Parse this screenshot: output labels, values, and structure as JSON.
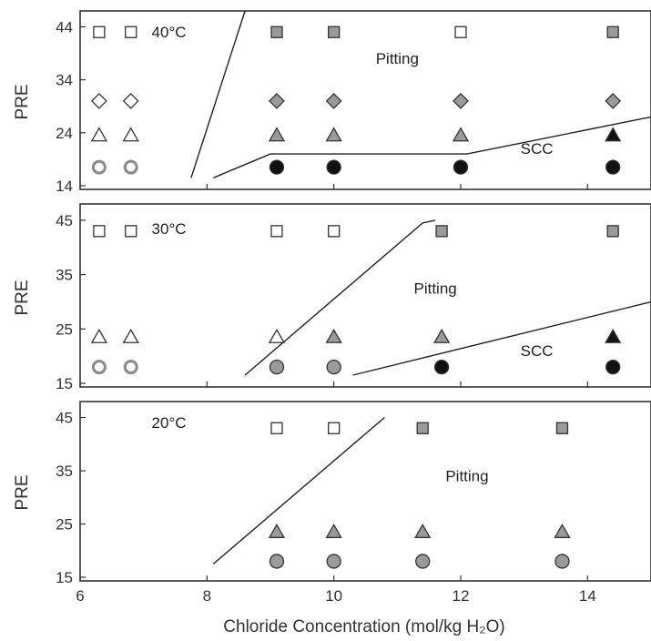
{
  "chart_data": [
    {
      "type": "scatter",
      "panel_label": "40°C",
      "ylabel": "PRE",
      "xlim": [
        6,
        15
      ],
      "ylim": [
        14,
        47
      ],
      "yticks": [
        14,
        24,
        34,
        44
      ],
      "xticks": [],
      "annotations": [
        {
          "text": "40°C",
          "x": 7.4,
          "y": 42
        },
        {
          "text": "Pitting",
          "x": 11.0,
          "y": 37
        },
        {
          "text": "SCC",
          "x": 13.2,
          "y": 20
        }
      ],
      "lines": [
        [
          [
            7.75,
            15.5
          ],
          [
            8.6,
            47
          ]
        ],
        [
          [
            8.1,
            15.5
          ],
          [
            9.0,
            20
          ],
          [
            12.1,
            20
          ],
          [
            15.0,
            27
          ]
        ]
      ],
      "points": [
        {
          "x": 6.3,
          "y": 43,
          "marker": "square",
          "fill": "open"
        },
        {
          "x": 6.8,
          "y": 43,
          "marker": "square",
          "fill": "open"
        },
        {
          "x": 9.1,
          "y": 43,
          "marker": "square",
          "fill": "gray"
        },
        {
          "x": 10.0,
          "y": 43,
          "marker": "square",
          "fill": "gray"
        },
        {
          "x": 12.0,
          "y": 43,
          "marker": "square",
          "fill": "open"
        },
        {
          "x": 14.4,
          "y": 43,
          "marker": "square",
          "fill": "gray"
        },
        {
          "x": 6.3,
          "y": 30,
          "marker": "diamond",
          "fill": "open"
        },
        {
          "x": 6.8,
          "y": 30,
          "marker": "diamond",
          "fill": "open"
        },
        {
          "x": 9.1,
          "y": 30,
          "marker": "diamond",
          "fill": "gray"
        },
        {
          "x": 10.0,
          "y": 30,
          "marker": "diamond",
          "fill": "gray"
        },
        {
          "x": 12.0,
          "y": 30,
          "marker": "diamond",
          "fill": "gray"
        },
        {
          "x": 14.4,
          "y": 30,
          "marker": "diamond",
          "fill": "gray"
        },
        {
          "x": 6.3,
          "y": 23.5,
          "marker": "triangle",
          "fill": "open"
        },
        {
          "x": 6.8,
          "y": 23.5,
          "marker": "triangle",
          "fill": "open"
        },
        {
          "x": 9.1,
          "y": 23.5,
          "marker": "triangle",
          "fill": "gray"
        },
        {
          "x": 10.0,
          "y": 23.5,
          "marker": "triangle",
          "fill": "gray"
        },
        {
          "x": 12.0,
          "y": 23.5,
          "marker": "triangle",
          "fill": "gray"
        },
        {
          "x": 14.4,
          "y": 23.5,
          "marker": "triangle",
          "fill": "black"
        },
        {
          "x": 6.3,
          "y": 17.5,
          "marker": "circle",
          "fill": "open"
        },
        {
          "x": 6.8,
          "y": 17.5,
          "marker": "circle",
          "fill": "open"
        },
        {
          "x": 9.1,
          "y": 17.5,
          "marker": "circle",
          "fill": "black"
        },
        {
          "x": 10.0,
          "y": 17.5,
          "marker": "circle",
          "fill": "black"
        },
        {
          "x": 12.0,
          "y": 17.5,
          "marker": "circle",
          "fill": "black"
        },
        {
          "x": 14.4,
          "y": 17.5,
          "marker": "circle",
          "fill": "black"
        }
      ]
    },
    {
      "type": "scatter",
      "panel_label": "30°C",
      "ylabel": "PRE",
      "xlim": [
        6,
        15
      ],
      "ylim": [
        15,
        48
      ],
      "yticks": [
        15,
        25,
        35,
        45
      ],
      "xticks": [],
      "annotations": [
        {
          "text": "30°C",
          "x": 7.4,
          "y": 42.5
        },
        {
          "text": "Pitting",
          "x": 11.6,
          "y": 31.5
        },
        {
          "text": "SCC",
          "x": 13.2,
          "y": 20
        }
      ],
      "lines": [
        [
          [
            8.6,
            16.5
          ],
          [
            11.4,
            44.5
          ],
          [
            11.6,
            45
          ]
        ],
        [
          [
            10.3,
            16.5
          ],
          [
            15.0,
            30
          ]
        ]
      ],
      "points": [
        {
          "x": 6.3,
          "y": 43,
          "marker": "square",
          "fill": "open"
        },
        {
          "x": 6.8,
          "y": 43,
          "marker": "square",
          "fill": "open"
        },
        {
          "x": 9.1,
          "y": 43,
          "marker": "square",
          "fill": "open"
        },
        {
          "x": 10.0,
          "y": 43,
          "marker": "square",
          "fill": "open"
        },
        {
          "x": 11.7,
          "y": 43,
          "marker": "square",
          "fill": "gray"
        },
        {
          "x": 14.4,
          "y": 43,
          "marker": "square",
          "fill": "gray"
        },
        {
          "x": 6.3,
          "y": 23.5,
          "marker": "triangle",
          "fill": "open"
        },
        {
          "x": 6.8,
          "y": 23.5,
          "marker": "triangle",
          "fill": "open"
        },
        {
          "x": 9.1,
          "y": 23.5,
          "marker": "triangle",
          "fill": "open"
        },
        {
          "x": 10.0,
          "y": 23.5,
          "marker": "triangle",
          "fill": "gray"
        },
        {
          "x": 11.7,
          "y": 23.5,
          "marker": "triangle",
          "fill": "gray"
        },
        {
          "x": 14.4,
          "y": 23.5,
          "marker": "triangle",
          "fill": "black"
        },
        {
          "x": 6.3,
          "y": 18,
          "marker": "circle",
          "fill": "open"
        },
        {
          "x": 6.8,
          "y": 18,
          "marker": "circle",
          "fill": "open"
        },
        {
          "x": 9.1,
          "y": 18,
          "marker": "circle",
          "fill": "gray"
        },
        {
          "x": 10.0,
          "y": 18,
          "marker": "circle",
          "fill": "gray"
        },
        {
          "x": 11.7,
          "y": 18,
          "marker": "circle",
          "fill": "black"
        },
        {
          "x": 14.4,
          "y": 18,
          "marker": "circle",
          "fill": "black"
        }
      ]
    },
    {
      "type": "scatter",
      "panel_label": "20°C",
      "ylabel": "PRE",
      "xlabel": "Chloride Concentration (mol/kg H₂O)",
      "xlim": [
        6,
        15
      ],
      "ylim": [
        15,
        48
      ],
      "yticks": [
        15,
        25,
        35,
        45
      ],
      "xticks": [
        6,
        8,
        10,
        12,
        14
      ],
      "annotations": [
        {
          "text": "20°C",
          "x": 7.4,
          "y": 43
        },
        {
          "text": "Pitting",
          "x": 12.1,
          "y": 33
        }
      ],
      "lines": [
        [
          [
            8.1,
            17.5
          ],
          [
            10.8,
            45
          ]
        ]
      ],
      "points": [
        {
          "x": 9.1,
          "y": 43,
          "marker": "square",
          "fill": "open"
        },
        {
          "x": 10.0,
          "y": 43,
          "marker": "square",
          "fill": "open"
        },
        {
          "x": 11.4,
          "y": 43,
          "marker": "square",
          "fill": "gray"
        },
        {
          "x": 13.6,
          "y": 43,
          "marker": "square",
          "fill": "gray"
        },
        {
          "x": 9.1,
          "y": 23.5,
          "marker": "triangle",
          "fill": "gray"
        },
        {
          "x": 10.0,
          "y": 23.5,
          "marker": "triangle",
          "fill": "gray"
        },
        {
          "x": 11.4,
          "y": 23.5,
          "marker": "triangle",
          "fill": "gray"
        },
        {
          "x": 13.6,
          "y": 23.5,
          "marker": "triangle",
          "fill": "gray"
        },
        {
          "x": 9.1,
          "y": 18,
          "marker": "circle",
          "fill": "gray"
        },
        {
          "x": 10.0,
          "y": 18,
          "marker": "circle",
          "fill": "gray"
        },
        {
          "x": 11.4,
          "y": 18,
          "marker": "circle",
          "fill": "gray"
        },
        {
          "x": 13.6,
          "y": 18,
          "marker": "circle",
          "fill": "gray"
        }
      ]
    }
  ],
  "colors": {
    "open_fill": "#ffffff",
    "gray_fill": "#9a9a9a",
    "black_fill": "#111111",
    "stroke": "#333333",
    "open_circle_stroke": "#8a8a8a"
  }
}
